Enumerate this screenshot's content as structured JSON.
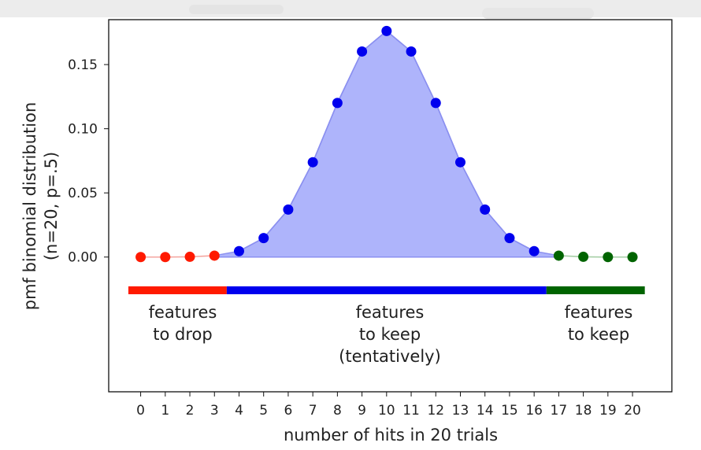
{
  "chart_data": {
    "type": "scatter",
    "xlabel": "number of hits in 20 trials",
    "ylabel_line1": "pmf binomial distribution",
    "ylabel_line2": "(n=20, p=.5)",
    "x_ticks": [
      "0",
      "1",
      "2",
      "3",
      "4",
      "5",
      "6",
      "7",
      "8",
      "9",
      "10",
      "11",
      "12",
      "13",
      "14",
      "15",
      "16",
      "17",
      "18",
      "19",
      "20"
    ],
    "y_ticks": [
      "0.00",
      "0.05",
      "0.10",
      "0.15"
    ],
    "xlim": [
      -1.3,
      21.6
    ],
    "ylim": [
      -0.105,
      0.185
    ],
    "grid": false,
    "x": [
      0,
      1,
      2,
      3,
      4,
      5,
      6,
      7,
      8,
      9,
      10,
      11,
      12,
      13,
      14,
      15,
      16,
      17,
      18,
      19,
      20
    ],
    "values": [
      0.0,
      0.0,
      0.0002,
      0.0011,
      0.0046,
      0.0148,
      0.037,
      0.0739,
      0.1201,
      0.1602,
      0.1762,
      0.1602,
      0.1201,
      0.0739,
      0.037,
      0.0148,
      0.0046,
      0.0011,
      0.0002,
      0.0,
      0.0
    ],
    "groups": [
      {
        "from": 0,
        "to": 3,
        "color": "#ff1a00",
        "line_color": "#f4a6a0",
        "label_lines": [
          "features",
          "to drop"
        ],
        "band": [
          -0.5,
          3.5
        ]
      },
      {
        "from": 4,
        "to": 16,
        "color": "#0000ee",
        "line_color": "#8a8ff0",
        "label_lines": [
          "features",
          "to keep",
          "(tentatively)"
        ],
        "band": [
          3.5,
          16.5
        ]
      },
      {
        "from": 17,
        "to": 20,
        "color": "#006400",
        "line_color": "#a6cfa6",
        "label_lines": [
          "features",
          "to keep"
        ],
        "band": [
          16.5,
          20.5
        ]
      }
    ],
    "fill_color": "#aab0fb",
    "fill_edge_color": "#8a8ff0"
  }
}
